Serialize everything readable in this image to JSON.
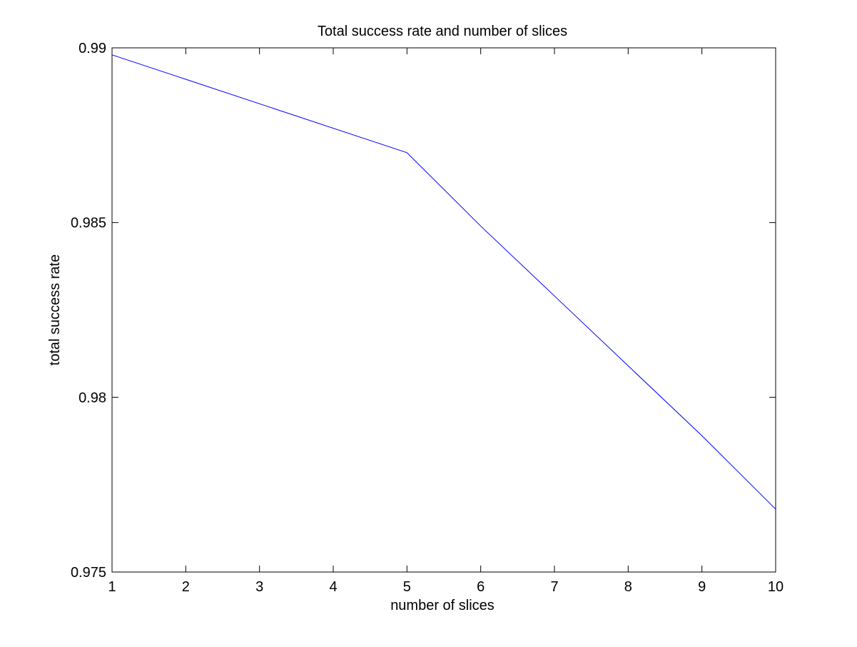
{
  "chart_data": {
    "type": "line",
    "title": "Total success rate and number of slices",
    "xlabel": "number of slices",
    "ylabel": "total success rate",
    "xlim": [
      1,
      10
    ],
    "ylim": [
      0.975,
      0.99
    ],
    "xticks": [
      1,
      2,
      3,
      4,
      5,
      6,
      7,
      8,
      9,
      10
    ],
    "xtick_labels": [
      "1",
      "2",
      "3",
      "4",
      "5",
      "6",
      "7",
      "8",
      "9",
      "10"
    ],
    "yticks": [
      0.975,
      0.98,
      0.985,
      0.99
    ],
    "ytick_labels": [
      "0.975",
      "0.98",
      "0.985",
      "0.99"
    ],
    "grid": false,
    "series": [
      {
        "color": "#0000ff",
        "x": [
          1,
          5,
          6,
          7,
          8,
          9,
          10
        ],
        "y": [
          0.9898,
          0.987,
          0.9849,
          0.9829,
          0.9809,
          0.9789,
          0.9768
        ]
      }
    ]
  }
}
